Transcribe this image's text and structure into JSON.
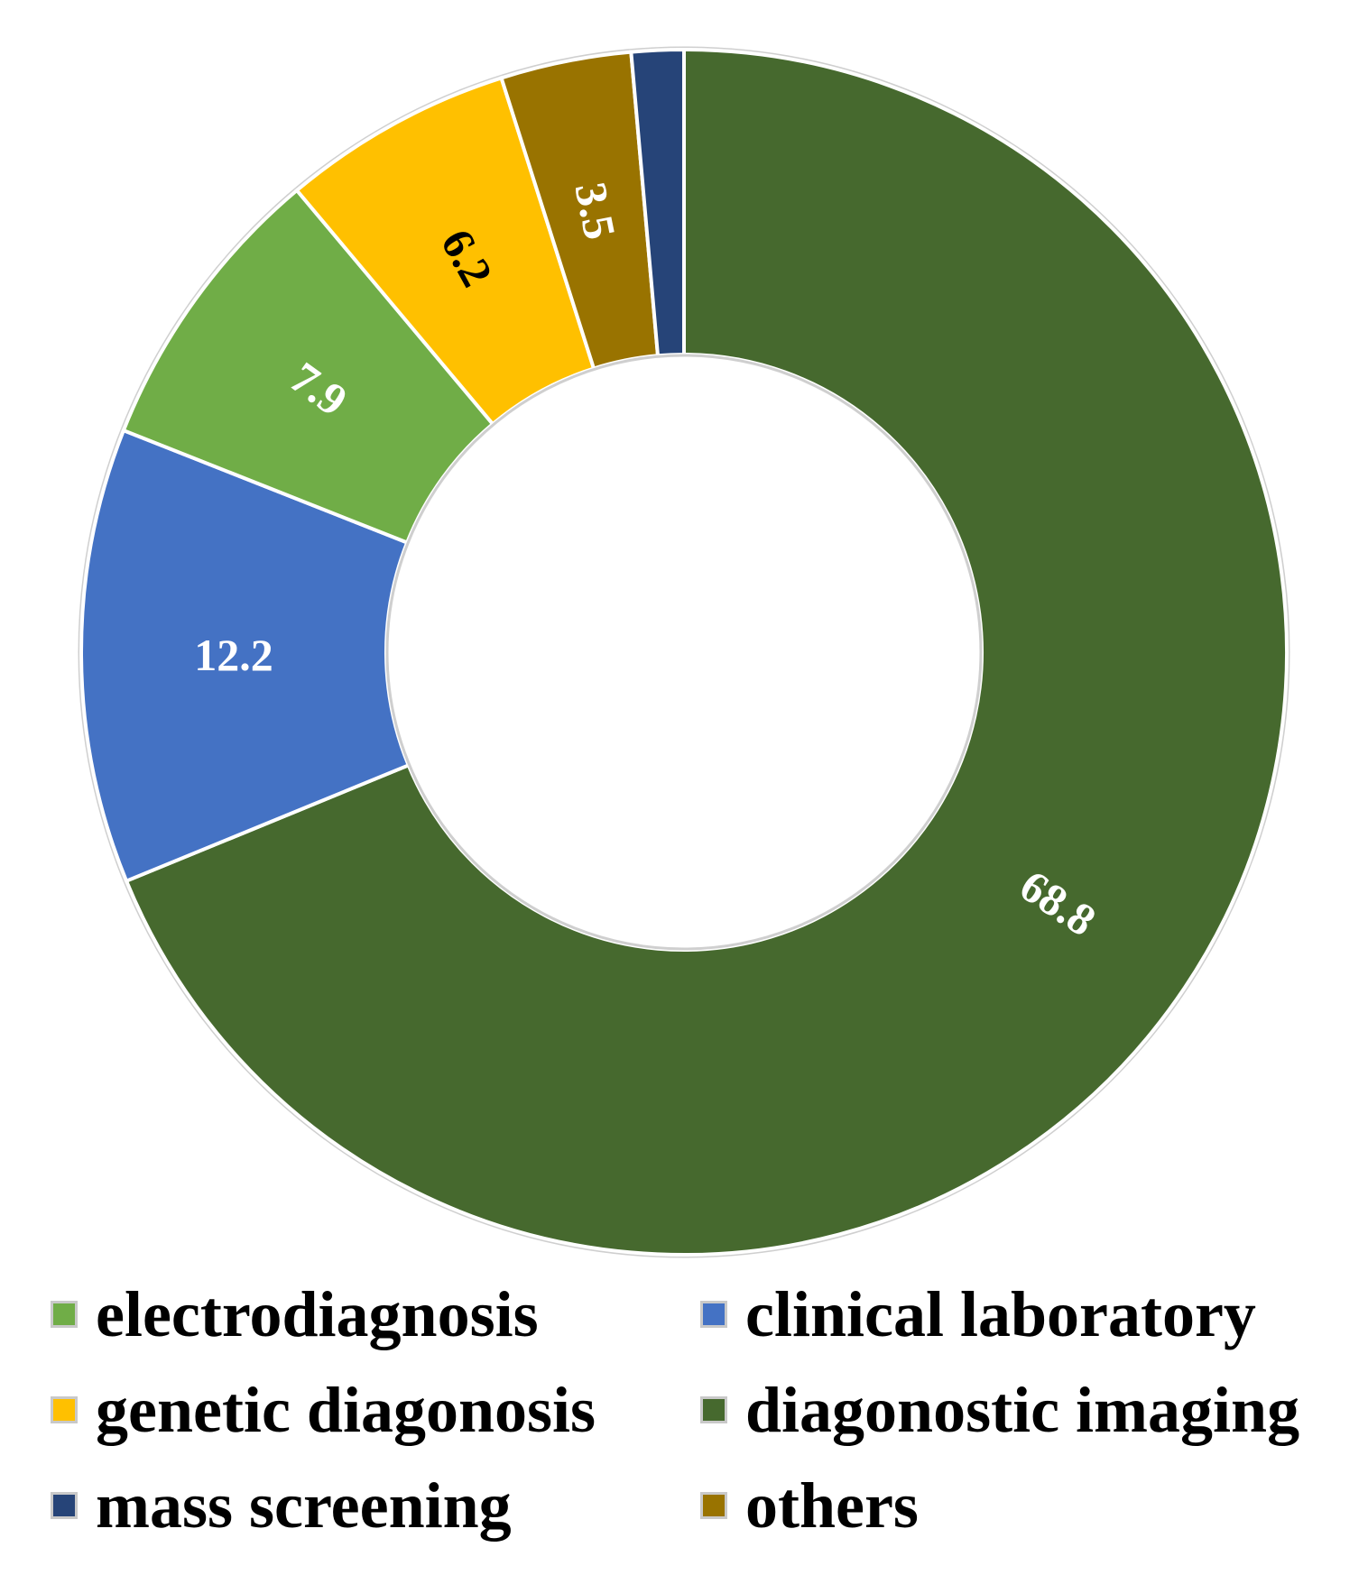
{
  "chart_data": {
    "type": "pie",
    "subtype": "donut",
    "slices": [
      {
        "key": "diagonostic_imaging",
        "value": 68.8,
        "value_label": "68.8",
        "color": "#46692e",
        "label_color": "#ffffff"
      },
      {
        "key": "clinical_laboratory",
        "value": 12.2,
        "value_label": "12.2",
        "color": "#4472c4",
        "label_color": "#ffffff"
      },
      {
        "key": "electrodiagnosis",
        "value": 7.9,
        "value_label": "7.9",
        "color": "#70ad47",
        "label_color": "#ffffff"
      },
      {
        "key": "genetic_diagonosis",
        "value": 6.2,
        "value_label": "6.2",
        "color": "#ffc000",
        "label_color": "#000000"
      },
      {
        "key": "others",
        "value": 3.5,
        "value_label": "3.5",
        "color": "#997300",
        "label_color": "#ffffff"
      },
      {
        "key": "mass_screening",
        "value": 1.4,
        "value_label": "",
        "color": "#264478",
        "label_color": "#ffffff"
      }
    ],
    "legend": {
      "placement": "bottom",
      "items": [
        {
          "label": "electrodiagnosis",
          "color": "#70ad47"
        },
        {
          "label": "clinical laboratory",
          "color": "#4472c4"
        },
        {
          "label": "genetic diagonosis",
          "color": "#ffc000"
        },
        {
          "label": "diagonostic imaging",
          "color": "#46692e"
        },
        {
          "label": "mass screening",
          "color": "#264478"
        },
        {
          "label": "others",
          "color": "#997300"
        }
      ]
    },
    "title": "",
    "start_angle": "12 o'clock, clockwise"
  }
}
